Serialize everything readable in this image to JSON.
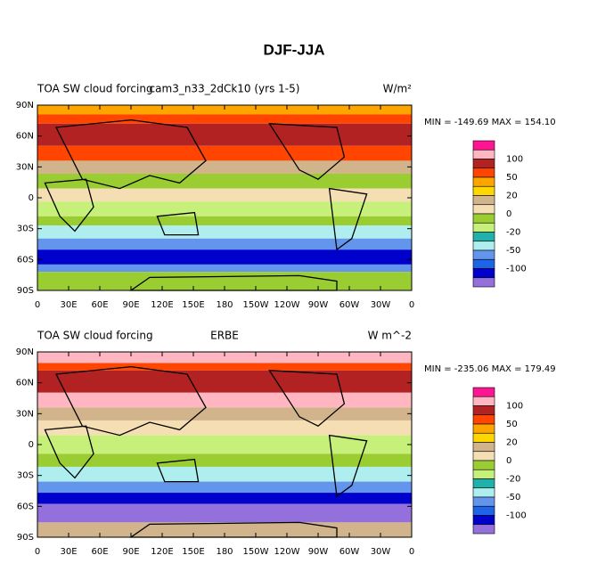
{
  "title": "DJF-JJA",
  "x_labels": [
    "0",
    "30E",
    "60E",
    "90E",
    "120E",
    "150E",
    "180",
    "150W",
    "120W",
    "90W",
    "60W",
    "30W",
    "0"
  ],
  "y_labels": [
    "90N",
    "60N",
    "30N",
    "0",
    "30S",
    "60S",
    "90S"
  ],
  "colorbar": {
    "colors": [
      "#ff1493",
      "#ffb6c1",
      "#b22222",
      "#ff4500",
      "#ffa500",
      "#ffd700",
      "#d2b48c",
      "#f5deb3",
      "#9acd32",
      "#c6f07a",
      "#20b2aa",
      "#afeeee",
      "#6495ed",
      "#1e64e6",
      "#0000cd",
      "#9370db"
    ],
    "labels": [
      "100",
      "50",
      "20",
      "0",
      "-20",
      "-50",
      "-100"
    ]
  },
  "panels": [
    {
      "left_title": "TOA SW cloud forcing",
      "center_title": "cam3_n33_2dCk10 (yrs 1-5)",
      "units": "W/m²",
      "stats": "MIN = -149.69 MAX = 154.10"
    },
    {
      "left_title": "TOA SW cloud forcing",
      "center_title": "ERBE",
      "units": "W m^-2",
      "stats": "MIN = -235.06 MAX = 179.49"
    }
  ]
}
